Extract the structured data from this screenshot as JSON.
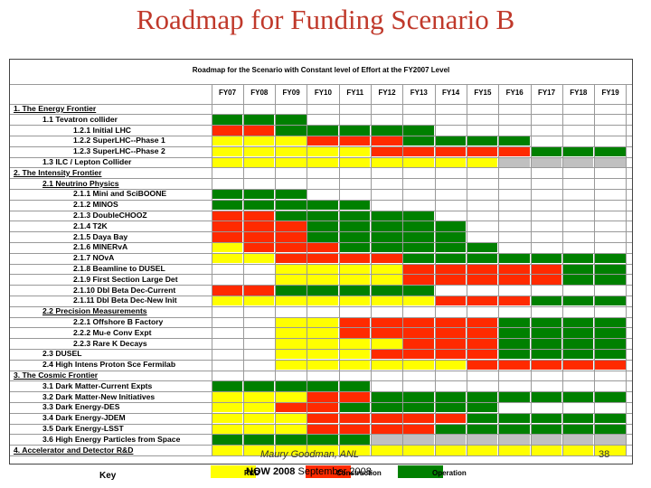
{
  "title": "Roadmap for Funding Scenario B",
  "table_caption": "Roadmap for the Scenario with Constant level of Effort at the FY2007 Level",
  "years": [
    "FY07",
    "FY08",
    "FY09",
    "FY10",
    "FY11",
    "FY12",
    "FY13",
    "FY14",
    "FY15",
    "FY16",
    "FY17",
    "FY18",
    "FY19"
  ],
  "colors": {
    "rnd": "#ffff00",
    "construction": "#ff2a00",
    "operation": "#008000",
    "other": "#c0c0c0",
    "empty": "#ffffff"
  },
  "rows": [
    {
      "label": "1. The Energy Frontier",
      "type": "section",
      "cells": ""
    },
    {
      "label": "1.1 Tevatron collider",
      "type": "item",
      "indent": 1,
      "cells": "OOO.........."
    },
    {
      "label": "1.2.1 Initial LHC",
      "type": "item",
      "indent": 2,
      "cells": "CCOOOOO......"
    },
    {
      "label": "1.2.2 SuperLHC--Phase 1",
      "type": "item",
      "indent": 2,
      "cells": "RRRCCCOOOO..."
    },
    {
      "label": "1.2.3 SuperLHC--Phase 2",
      "type": "item",
      "indent": 2,
      "cells": "RRRRRCCCCCOOO"
    },
    {
      "label": "1.3 ILC / Lepton Collider",
      "type": "item",
      "indent": 1,
      "cells": "RRRRRRRRRGGGG"
    },
    {
      "label": "2. The Intensity Frontier",
      "type": "section",
      "cells": ""
    },
    {
      "label": "2.1 Neutrino Physics",
      "type": "sub",
      "indent": 1,
      "cells": ""
    },
    {
      "label": "2.1.1 Mini and SciBOONE",
      "type": "item",
      "indent": 2,
      "cells": "OOO.........."
    },
    {
      "label": "2.1.2 MINOS",
      "type": "item",
      "indent": 2,
      "cells": "OOOOO........"
    },
    {
      "label": "2.1.3 DoubleCHOOZ",
      "type": "item",
      "indent": 2,
      "cells": "CCOOOOO......"
    },
    {
      "label": "2.1.4 T2K",
      "type": "item",
      "indent": 2,
      "cells": "CCCOOOOO....."
    },
    {
      "label": "2.1.5 Daya Bay",
      "type": "item",
      "indent": 2,
      "cells": "CCCOOOOO....."
    },
    {
      "label": "2.1.6 MINERvA",
      "type": "item",
      "indent": 2,
      "cells": "RCCCOOOOO...."
    },
    {
      "label": "2.1.7 NOvA",
      "type": "item",
      "indent": 2,
      "cells": "RRCCCCOOOOOOO"
    },
    {
      "label": "2.1.8 Beamline to DUSEL",
      "type": "item",
      "indent": 2,
      "cells": "..RRRRCCCCCOO"
    },
    {
      "label": "2.1.9 First Section Large Det",
      "type": "item",
      "indent": 2,
      "cells": "..RRRRCCCCCOO"
    },
    {
      "label": "2.1.10 Dbl Beta Dec-Current",
      "type": "item",
      "indent": 2,
      "cells": "CCOOOOO......"
    },
    {
      "label": "2.1.11 Dbl Beta Dec-New Init",
      "type": "item",
      "indent": 2,
      "cells": "RRRRRRRCCCOOO"
    },
    {
      "label": "2.2 Precision Measurements",
      "type": "sub",
      "indent": 1,
      "cells": ""
    },
    {
      "label": "2.2.1 Offshore B Factory",
      "type": "item",
      "indent": 2,
      "cells": "..RRCCCCCOOOO"
    },
    {
      "label": "2.2.2 Mu-e Conv Expt",
      "type": "item",
      "indent": 2,
      "cells": "..RRCCCCCOOOO"
    },
    {
      "label": "2.2.3 Rare K Decays",
      "type": "item",
      "indent": 2,
      "cells": "..RRRRCCCOOOO"
    },
    {
      "label": "2.3 DUSEL",
      "type": "item",
      "indent": 1,
      "cells": "..RRRCCCCOOOO"
    },
    {
      "label": "2.4 High Intens Proton Sce Fermilab",
      "type": "item",
      "indent": 1,
      "cells": "..RRRRRRCCCCC"
    },
    {
      "label": "3. The Cosmic Frontier",
      "type": "section",
      "cells": ""
    },
    {
      "label": "3.1 Dark Matter-Current Expts",
      "type": "item",
      "indent": 1,
      "cells": "OOOOO........"
    },
    {
      "label": "3.2 Dark Matter-New Initiatives",
      "type": "item",
      "indent": 1,
      "cells": "RRRCCOOOOOOOO"
    },
    {
      "label": "3.3 Dark Energy-DES",
      "type": "item",
      "indent": 1,
      "cells": "RRCCOOOOO...."
    },
    {
      "label": "3.4 Dark Energy-JDEM",
      "type": "item",
      "indent": 1,
      "cells": "RRRCCCCCOOOOO"
    },
    {
      "label": "3.5 Dark Energy-LSST",
      "type": "item",
      "indent": 1,
      "cells": "RRRCCCCOOOOOO"
    },
    {
      "label": "3.6 High Energy Particles from Space",
      "type": "item",
      "indent": 1,
      "cells": "OOOOOGGGGGGGG"
    },
    {
      "label": "4. Accelerator and Detector R&D",
      "type": "section",
      "cells": "RRRRRRRRRRRRR"
    }
  ],
  "key": {
    "label": "Key",
    "rnd": "R&D",
    "construction": "Construction",
    "operation": "Operation"
  },
  "footer": {
    "author": "Maury Goodman, ANL",
    "event": "NOW 2008",
    "date": "September 2008",
    "page": "38"
  }
}
